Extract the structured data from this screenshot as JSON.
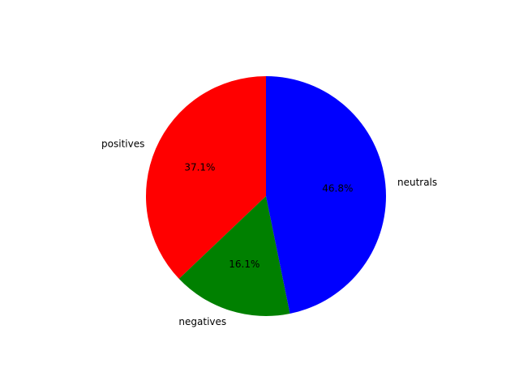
{
  "chart_data": {
    "type": "pie",
    "slices": [
      {
        "label": "positives",
        "percent": 37.1,
        "percent_label": "37.1%",
        "color": "#ff0000"
      },
      {
        "label": "negatives",
        "percent": 16.1,
        "percent_label": "16.1%",
        "color": "#008000"
      },
      {
        "label": "neutrals",
        "percent": 46.8,
        "percent_label": "46.8%",
        "color": "#0000ff"
      }
    ],
    "start_angle_deg": 90,
    "direction": "counterclockwise"
  }
}
